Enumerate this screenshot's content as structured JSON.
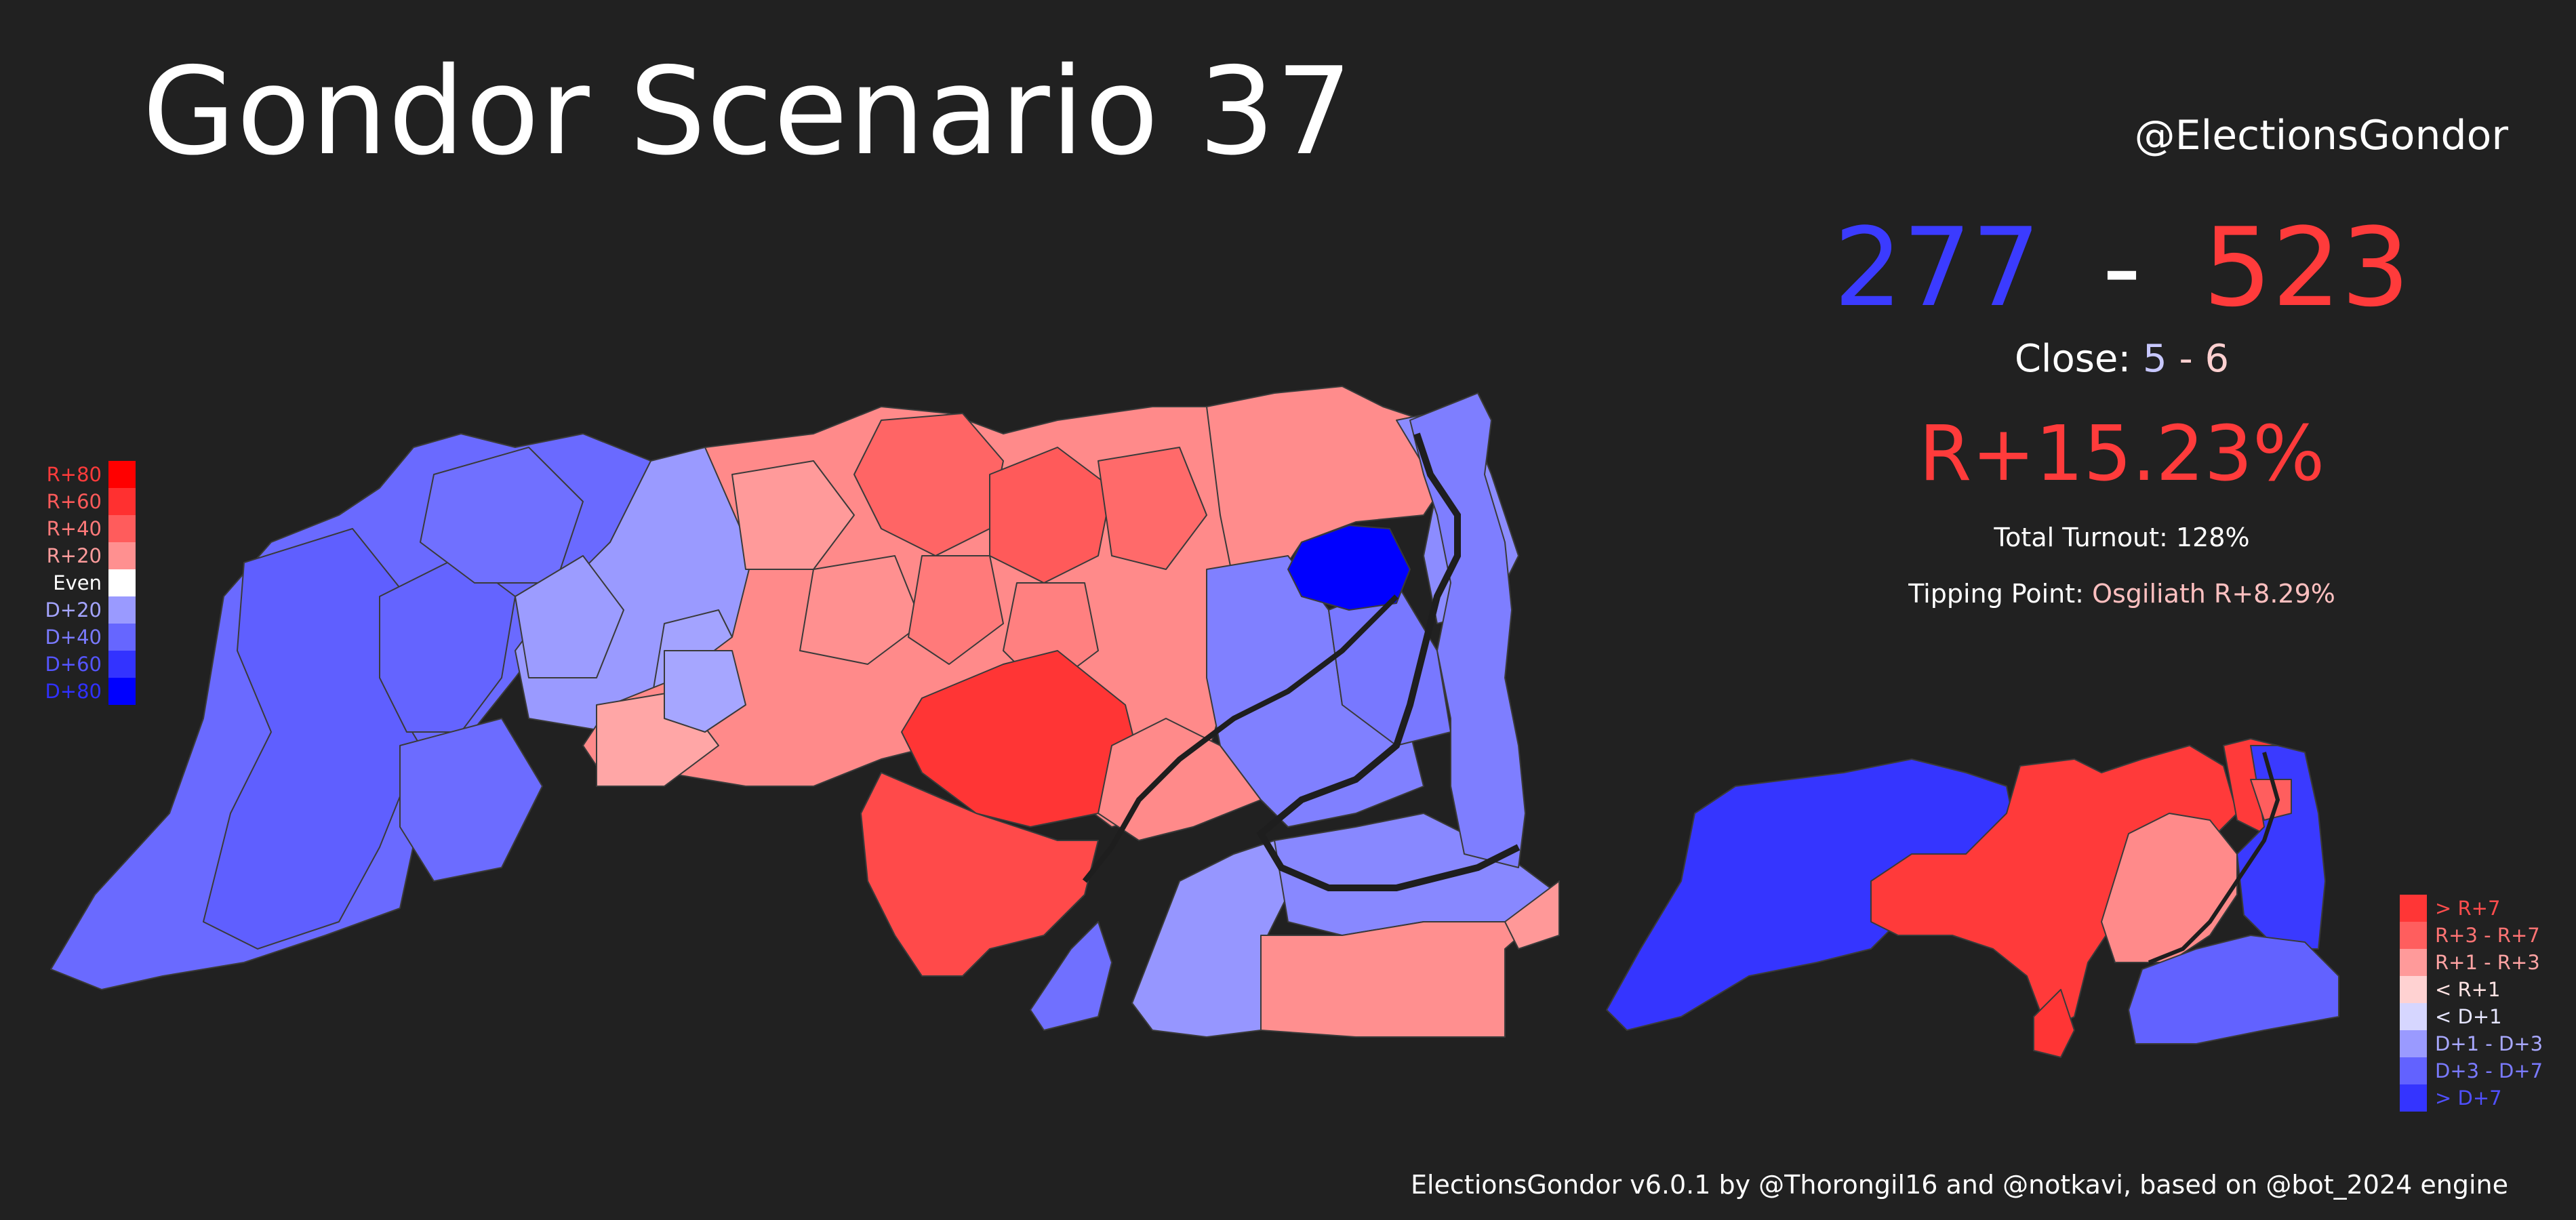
{
  "header": {
    "title": "Gondor Scenario 37",
    "handle": "@ElectionsGondor"
  },
  "summary": {
    "dem_ev": "277",
    "dash": "-",
    "rep_ev": "523",
    "close_label": "Close:",
    "close_dem": "5",
    "close_dash": "-",
    "close_rep": "6",
    "popular_margin": "R+15.23%",
    "turnout_text": "Total Turnout: 128%",
    "tipping_label": "Tipping Point:",
    "tipping_value": "Osgiliath R+8.29%"
  },
  "legend_left": [
    {
      "label": "R+80",
      "color": "#ff0000",
      "text_color": "#ff3b3b"
    },
    {
      "label": "R+60",
      "color": "#ff3030",
      "text_color": "#ff5a5a"
    },
    {
      "label": "R+40",
      "color": "#ff5c5c",
      "text_color": "#ff7a7a"
    },
    {
      "label": "R+20",
      "color": "#ff9090",
      "text_color": "#ff9c9c"
    },
    {
      "label": "Even",
      "color": "#ffffff",
      "text_color": "#ffffff"
    },
    {
      "label": "D+20",
      "color": "#9a9aff",
      "text_color": "#a4a4ff"
    },
    {
      "label": "D+40",
      "color": "#6666ff",
      "text_color": "#7a7aff"
    },
    {
      "label": "D+60",
      "color": "#3333ff",
      "text_color": "#5555ff"
    },
    {
      "label": "D+80",
      "color": "#0000ff",
      "text_color": "#3030ff"
    }
  ],
  "legend_right": [
    {
      "label": "> R+7",
      "color": "#ff3636",
      "text_color": "#ff4d4d"
    },
    {
      "label": "R+3 - R+7",
      "color": "#ff5e5e",
      "text_color": "#ff7373"
    },
    {
      "label": "R+1 - R+3",
      "color": "#ff9a9a",
      "text_color": "#ffa3a3"
    },
    {
      "label": "< R+1",
      "color": "#ffd2d2",
      "text_color": "#ffe3e3"
    },
    {
      "label": "< D+1",
      "color": "#d6d6ff",
      "text_color": "#e6e6ff"
    },
    {
      "label": "D+1 - D+3",
      "color": "#9a9aff",
      "text_color": "#a8a8ff"
    },
    {
      "label": "D+3 - D+7",
      "color": "#6262ff",
      "text_color": "#7a7aff"
    },
    {
      "label": "> D+7",
      "color": "#3434ff",
      "text_color": "#5050ff"
    }
  ],
  "footer": {
    "credits": "ElectionsGondor v6.0.1 by @Thorongil16 and @notkavi, based on @bot_2024 engine"
  },
  "colors": {
    "background": "#212121",
    "dem": "#3b3bff",
    "rep": "#ff3b3b",
    "close_dem": "#c8c8ff",
    "close_rep": "#ffd0d0",
    "tipping": "#ffc0c0",
    "river": "#1e1e1e"
  }
}
